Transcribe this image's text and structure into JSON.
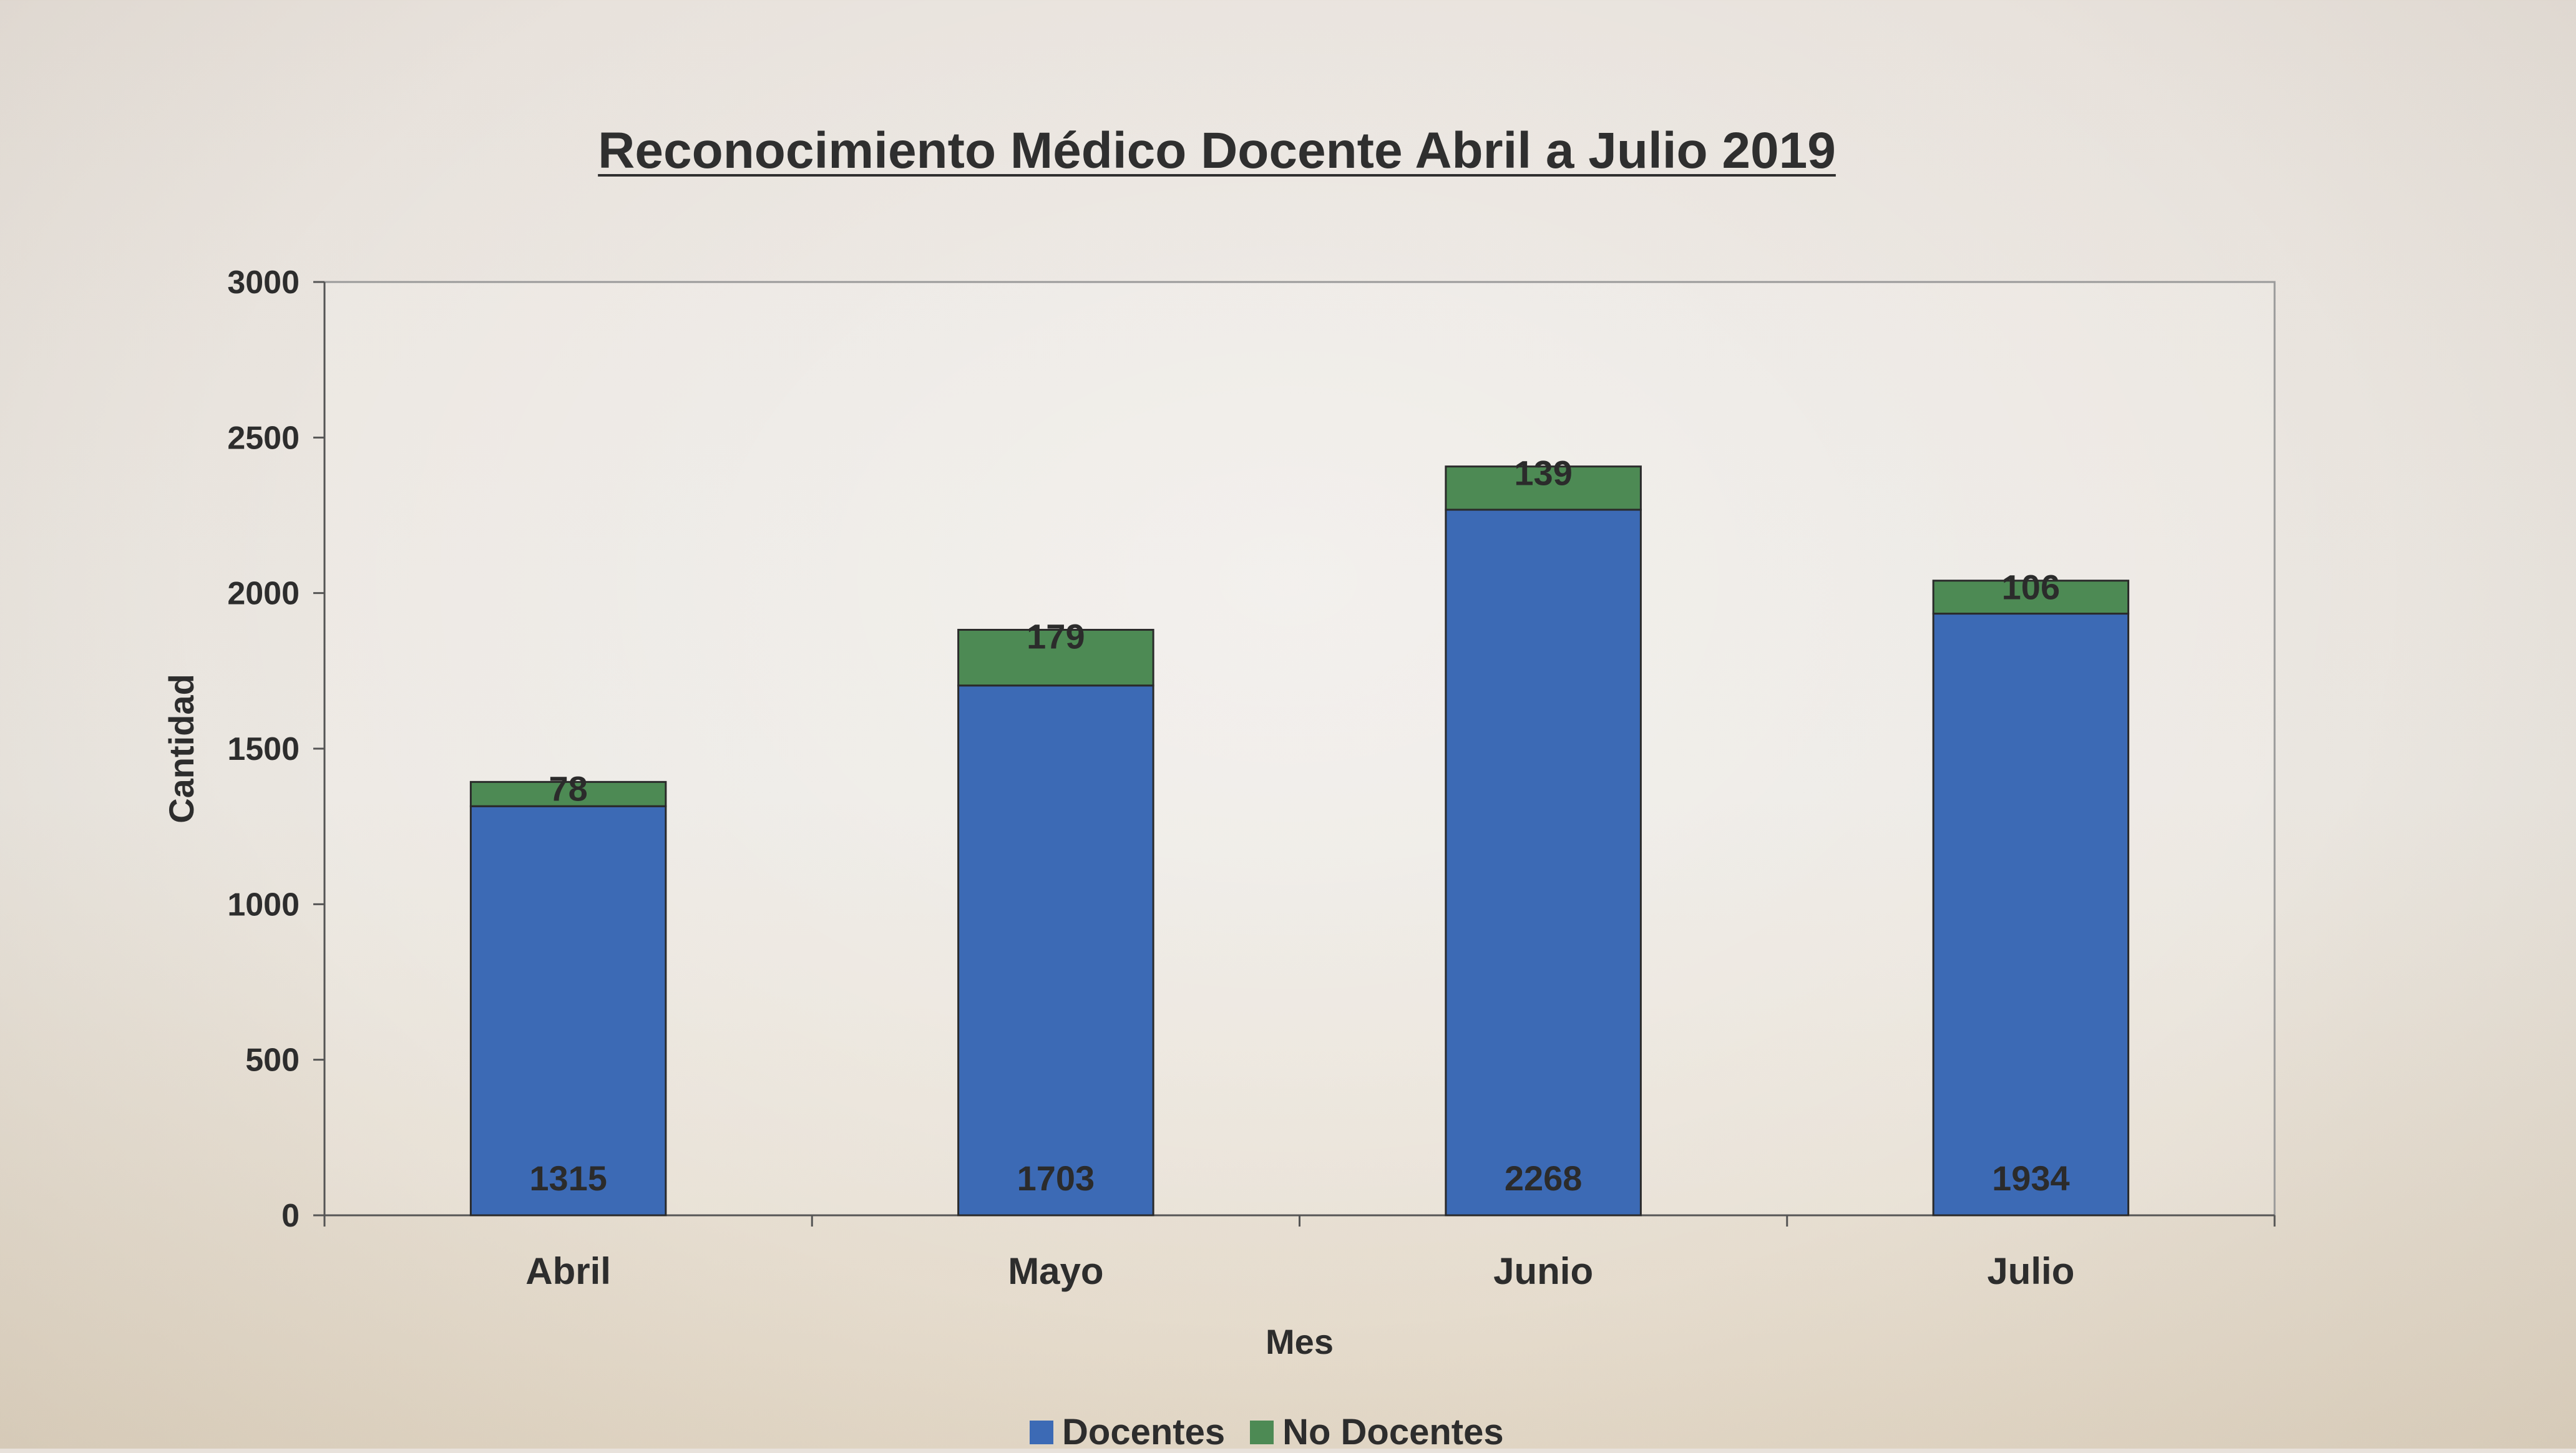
{
  "chart_data": {
    "type": "bar",
    "stacked": true,
    "title": "Reconocimiento Médico Docente Abril a Julio 2019",
    "xlabel": "Mes",
    "ylabel": "Cantidad",
    "categories": [
      "Abril",
      "Mayo",
      "Junio",
      "Julio"
    ],
    "series": [
      {
        "name": "Docentes",
        "values": [
          1315,
          1703,
          2268,
          1934
        ],
        "color": "#3c6ab5"
      },
      {
        "name": "No Docentes",
        "values": [
          78,
          179,
          139,
          106
        ],
        "color": "#4d8a54"
      }
    ],
    "ylim": [
      0,
      3000
    ],
    "yticks": [
      0,
      500,
      1000,
      1500,
      2000,
      2500,
      3000
    ],
    "grid": false,
    "legend": "bottom"
  }
}
